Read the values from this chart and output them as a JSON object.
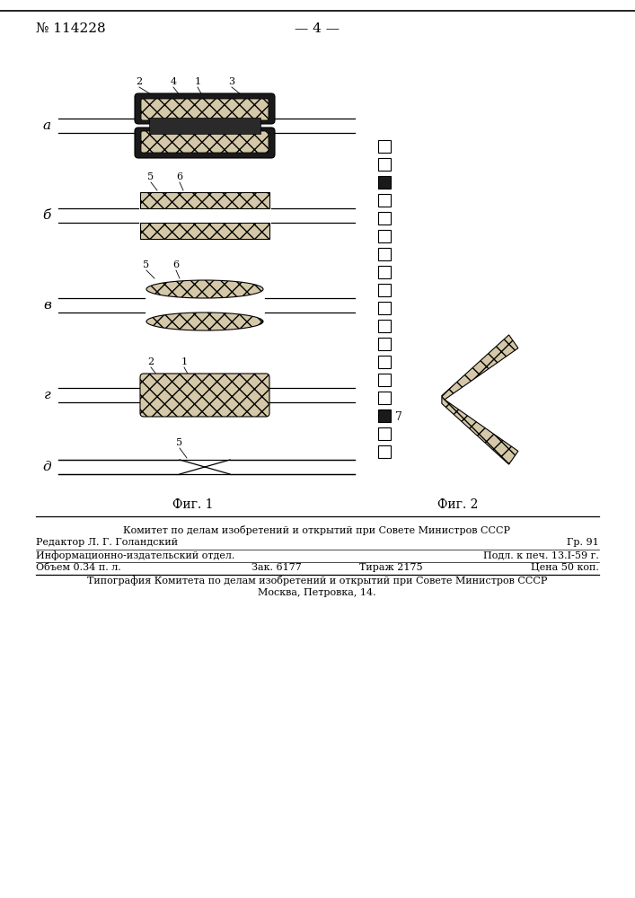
{
  "bg_color": "#ffffff",
  "header_patent": "№ 114228",
  "header_page": "— 4 —",
  "fig1_label": "Фиг. 1",
  "fig2_label": "Фиг. 2",
  "footer_line1": "Комитет по делам изобретений и открытий при Совете Министров СССР",
  "footer_line2": "Редактор Л. Г. Голандский",
  "footer_line2r": "Гр. 91",
  "footer_line3": "Информационно-издательский отдел.",
  "footer_line3r": "Подл. к печ. 13.I-59 г.",
  "footer_line4l": "Объем 0.34 п. л.",
  "footer_line4m": "Зак. 6177",
  "footer_line4m2": "Тираж 2175",
  "footer_line4r": "Цена 50 коп.",
  "footer_line5": "Типография Комитета по делам изобретений и открытий при Совете Министров СССР",
  "footer_line6": "Москва, Петровка, 14."
}
